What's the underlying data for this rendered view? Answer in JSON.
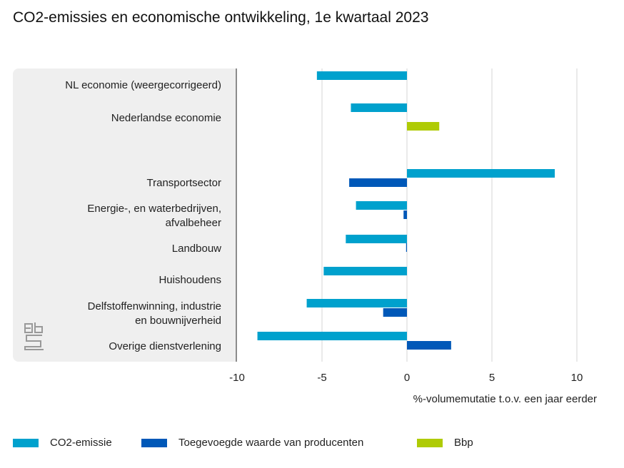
{
  "chart_data": {
    "type": "bar",
    "orientation": "horizontal",
    "title": "CO2-emissies en economische ontwikkeling, 1e kwartaal 2023",
    "xlabel": "%-volumemutatie t.o.v. een jaar eerder",
    "ylabel": "",
    "xlim": [
      -10,
      11
    ],
    "xticks": [
      "-10",
      "-5",
      "0",
      "5",
      "10"
    ],
    "grid": true,
    "legend_position": "bottom",
    "categories": [
      "NL economie (weergecorrigeerd)",
      "Nederlandse economie",
      "Transportsector",
      "Energie-, en waterbedrijven, afvalbeheer",
      "Landbouw",
      "Huishoudens",
      "Delfstoffenwinning, industrie en bouwnijverheid",
      "Overige dienstverlening"
    ],
    "series": [
      {
        "name": "CO2-emissie",
        "color": "#00a1cd",
        "values": [
          -5.3,
          -3.3,
          8.7,
          -3.0,
          -3.6,
          -4.9,
          -5.9,
          -8.8
        ]
      },
      {
        "name": "Toegevoegde waarde van producenten",
        "color": "#0058b8",
        "values": [
          null,
          null,
          -3.4,
          -0.2,
          -0.05,
          null,
          -1.4,
          2.6
        ]
      },
      {
        "name": "Bbp",
        "color": "#afcb05",
        "values": [
          null,
          1.9,
          null,
          null,
          null,
          null,
          null,
          null
        ]
      }
    ]
  },
  "labels": {
    "cat3_line1": "Energie-, en waterbedrijven,",
    "cat3_line2": "afvalbeheer",
    "cat6_line1": "Delfstoffenwinning, industrie",
    "cat6_line2": "en bouwnijverheid"
  }
}
